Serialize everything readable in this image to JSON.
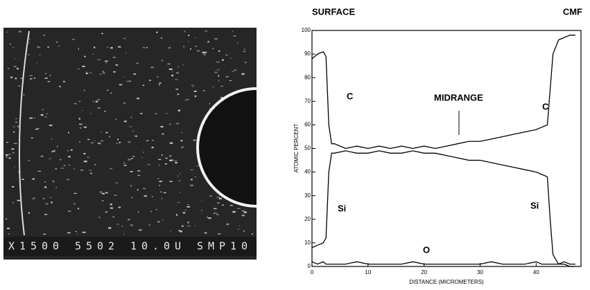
{
  "micrograph": {
    "label": "X1500 5502 10.0U SMP10"
  },
  "chart_data": {
    "type": "line",
    "xlabel": "DISTANCE (MICROMETERS)",
    "ylabel": "ATOMIC PERCENT",
    "annotations": [
      "SURFACE",
      "CMF",
      "C",
      "MIDRANGE",
      "C",
      "Si",
      "Si",
      "O"
    ],
    "x": [
      0,
      1,
      2,
      2.5,
      3,
      3.5,
      4,
      6,
      8,
      10,
      12,
      14,
      16,
      18,
      20,
      22,
      24,
      26,
      28,
      30,
      32,
      34,
      36,
      38,
      40,
      41,
      42,
      42.5,
      43,
      44,
      45,
      46,
      47
    ],
    "series": [
      {
        "name": "C",
        "color": "#000000",
        "values": [
          88,
          90,
          91,
          89,
          60,
          52,
          52,
          50,
          51,
          50,
          51,
          50,
          51,
          50,
          51,
          50,
          51,
          52,
          53,
          53,
          54,
          55,
          56,
          57,
          58,
          59,
          60,
          75,
          90,
          96,
          97,
          98,
          98
        ]
      },
      {
        "name": "Si",
        "color": "#000000",
        "values": [
          8,
          9,
          10,
          12,
          40,
          48,
          48,
          49,
          48,
          48,
          49,
          48,
          48,
          49,
          48,
          48,
          47,
          46,
          45,
          45,
          44,
          43,
          42,
          41,
          40,
          39,
          38,
          20,
          5,
          1,
          1,
          0,
          0
        ]
      },
      {
        "name": "O",
        "color": "#000000",
        "values": [
          2,
          1,
          2,
          1,
          1,
          1,
          1,
          1,
          2,
          1,
          1,
          1,
          1,
          2,
          1,
          1,
          1,
          1,
          1,
          1,
          2,
          1,
          1,
          1,
          2,
          1,
          1,
          1,
          1,
          1,
          2,
          1,
          1
        ]
      }
    ],
    "xlim": [
      0,
      48
    ],
    "ylim": [
      0,
      100
    ],
    "xticks": [
      0,
      10,
      20,
      30,
      40
    ],
    "yticks": [
      0,
      10,
      20,
      30,
      40,
      50,
      60,
      70,
      80,
      90,
      100
    ],
    "grid": false
  }
}
